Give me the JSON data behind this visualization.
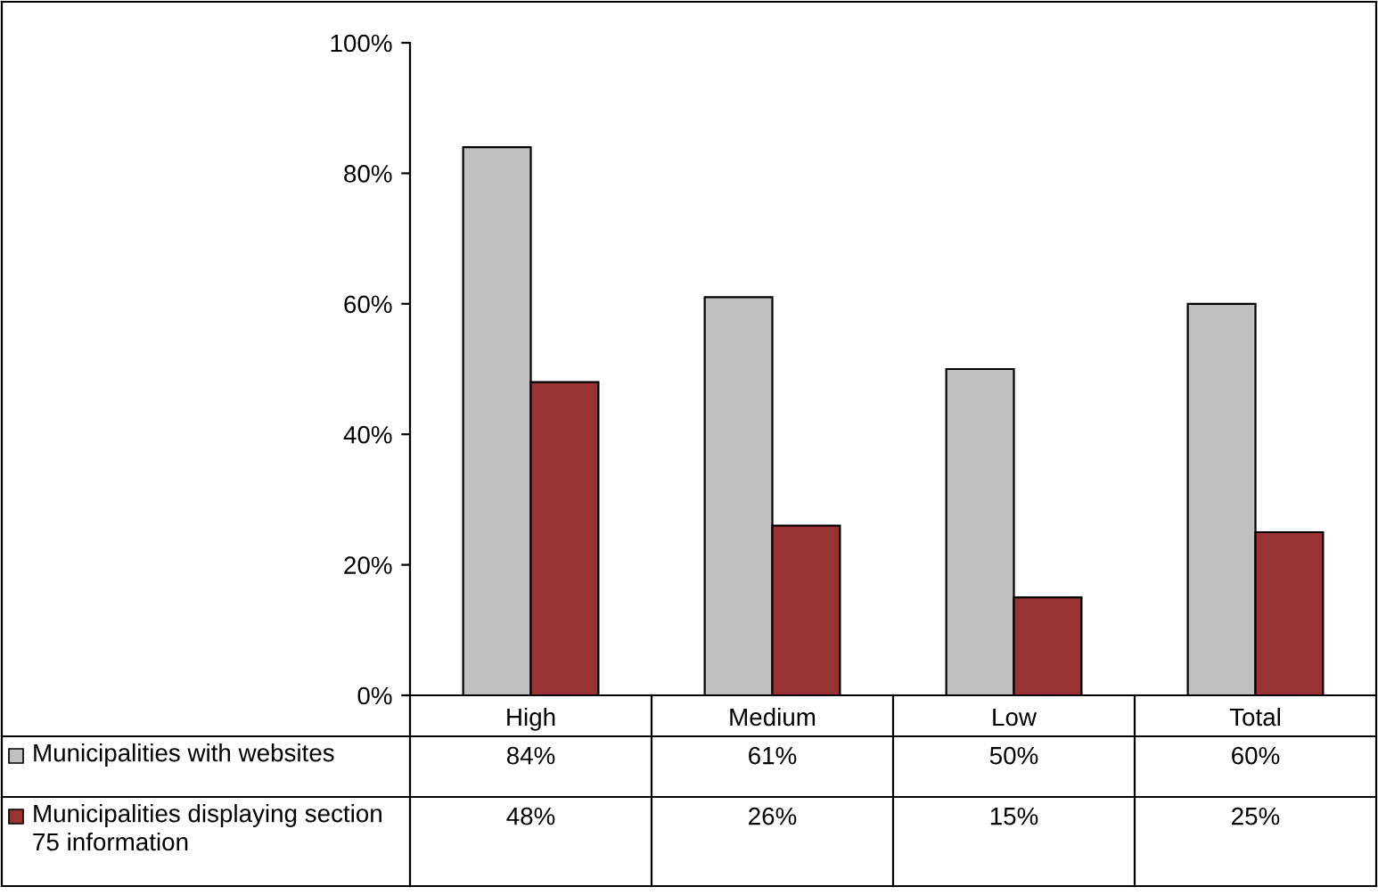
{
  "chart_data": {
    "type": "bar",
    "categories": [
      "High",
      "Medium",
      "Low",
      "Total"
    ],
    "series": [
      {
        "name": "Municipalities with websites",
        "color": "#c0c0c0",
        "values": [
          84,
          61,
          50,
          60
        ],
        "value_labels": [
          "84%",
          "61%",
          "50%",
          "60%"
        ]
      },
      {
        "name": "Municipalities displaying section 75 information",
        "color": "#993333",
        "values": [
          48,
          26,
          15,
          25
        ],
        "value_labels": [
          "48%",
          "26%",
          "15%",
          "25%"
        ]
      }
    ],
    "ylim": [
      0,
      100
    ],
    "yticks": [
      {
        "value": 0,
        "label": "0%"
      },
      {
        "value": 20,
        "label": "20%"
      },
      {
        "value": 40,
        "label": "40%"
      },
      {
        "value": 60,
        "label": "60%"
      },
      {
        "value": 80,
        "label": "80%"
      },
      {
        "value": 100,
        "label": "100%"
      }
    ],
    "grid": false,
    "legend": "bottom"
  }
}
